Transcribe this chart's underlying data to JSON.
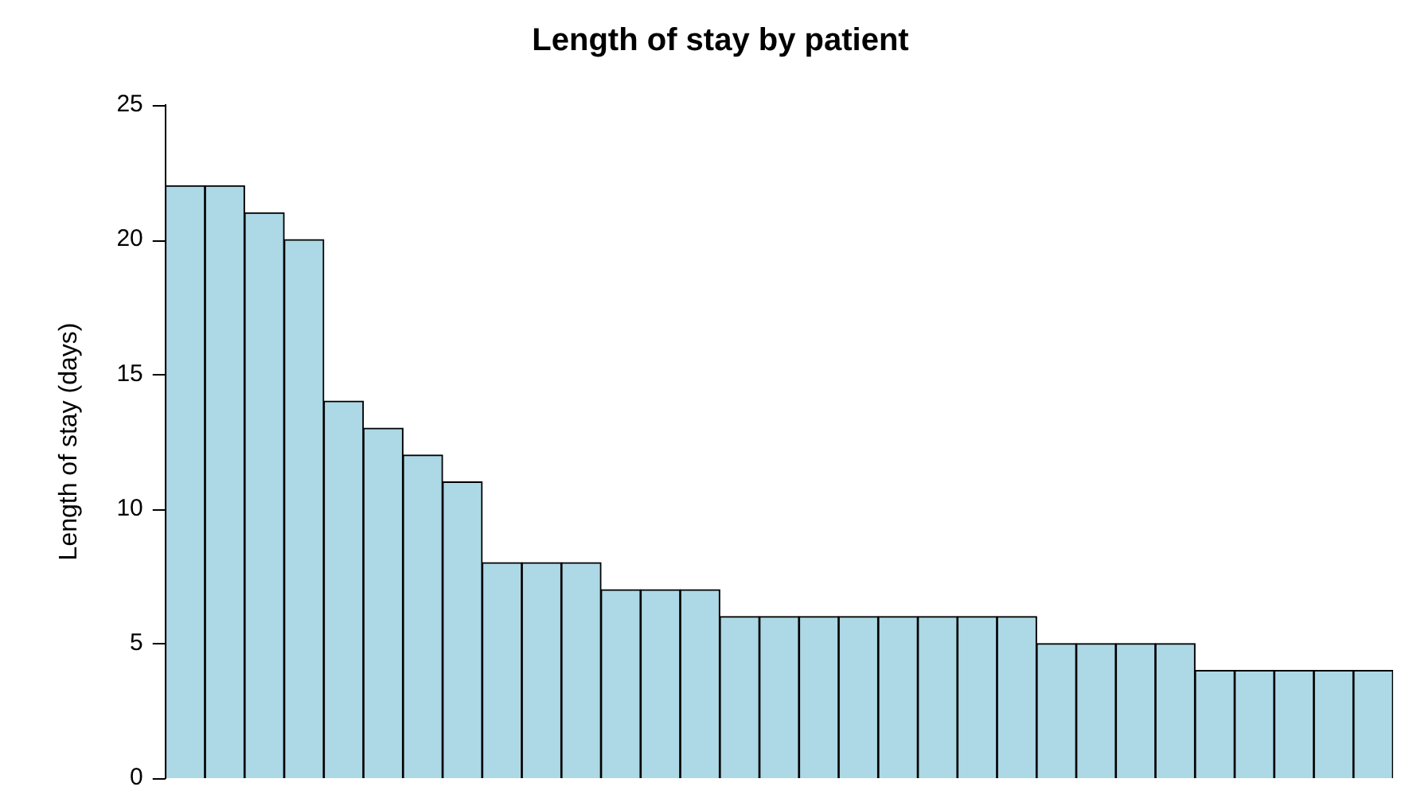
{
  "chart_data": {
    "type": "bar",
    "title": "Length of stay by patient",
    "ylabel": "Length of stay (days)",
    "categories": [
      null,
      null,
      null,
      null,
      null,
      null,
      null,
      null,
      null,
      null,
      null,
      null,
      null,
      null,
      null,
      null,
      null,
      null,
      null,
      null,
      null,
      null,
      null,
      null,
      null,
      null,
      null,
      null,
      null,
      null,
      null
    ],
    "values": [
      22,
      22,
      21,
      20,
      14,
      13,
      12,
      11,
      8,
      8,
      8,
      7,
      7,
      7,
      6,
      6,
      6,
      6,
      6,
      6,
      6,
      6,
      5,
      5,
      5,
      5,
      4,
      4,
      4,
      4,
      4
    ],
    "color": "#add8e6",
    "ylim": [
      0,
      25
    ],
    "yticks": [
      0,
      5,
      10,
      15,
      20,
      25
    ],
    "grid": false,
    "legend": false
  }
}
